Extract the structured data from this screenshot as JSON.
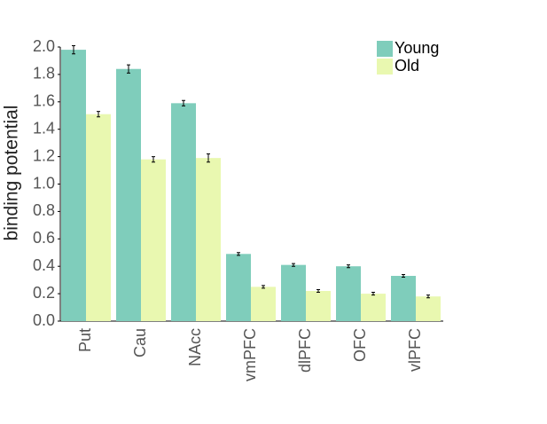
{
  "chart_data": {
    "type": "bar",
    "ylabel": "binding potential",
    "categories": [
      "Put",
      "Cau",
      "NAcc",
      "vmPFC",
      "dlPFC",
      "OFC",
      "vlPFC"
    ],
    "series": [
      {
        "name": "Young",
        "color": "#7fcdbb",
        "values": [
          1.98,
          1.84,
          1.59,
          0.49,
          0.41,
          0.4,
          0.33
        ],
        "errors": [
          0.03,
          0.03,
          0.02,
          0.01,
          0.01,
          0.01,
          0.01
        ]
      },
      {
        "name": "Old",
        "color": "#e9f8b0",
        "values": [
          1.51,
          1.18,
          1.19,
          0.25,
          0.22,
          0.2,
          0.18
        ],
        "errors": [
          0.02,
          0.02,
          0.03,
          0.01,
          0.01,
          0.01,
          0.01
        ]
      }
    ],
    "ylim": [
      0,
      2.0
    ],
    "yticks": [
      {
        "value": 0,
        "label": "0.0"
      },
      0.2,
      0.4,
      0.6,
      0.8,
      {
        "value": 1,
        "label": "1.0"
      },
      1.2,
      1.4,
      1.6,
      1.8,
      {
        "value": 2,
        "label": "2.0"
      }
    ],
    "legend": "upper right"
  }
}
